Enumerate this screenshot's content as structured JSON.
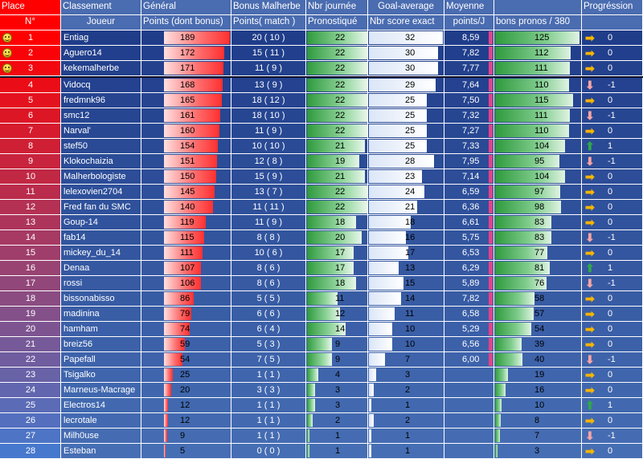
{
  "colors": {
    "header_bg": "#4a6cb0",
    "table_bg": "#1f3d8a",
    "sep": "#0a0f28",
    "accent_red": "#ff0000"
  },
  "header": {
    "row1": {
      "place": "Place",
      "classement": "Classement",
      "general": "Général",
      "bonus": "Bonus Malherbe",
      "nbr_journee": "Nbr journée",
      "goal_average": "Goal-average",
      "moyenne": "Moyenne",
      "progression": "Progréssion"
    },
    "row2": {
      "num": "N°",
      "joueur": "Joueur",
      "points": "Points (dont bonus)",
      "points_match": "Points( match )",
      "pronostique": "Pronostiqué",
      "score_exact": "Nbr score exact",
      "points_j": "points/J",
      "bons_pronos": "bons pronos / 380"
    }
  },
  "rows": [
    {
      "place": "1",
      "player": "Entiag",
      "points": 189,
      "bonus": "20 ( 10 )",
      "journee": 22,
      "exact": 32,
      "avg": "8,59",
      "pronos": 125,
      "prog": "0",
      "trend": "right",
      "smiley": true
    },
    {
      "place": "2",
      "player": "Aguero14",
      "points": 172,
      "bonus": "15 ( 11 )",
      "journee": 22,
      "exact": 30,
      "avg": "7,82",
      "pronos": 112,
      "prog": "0",
      "trend": "right",
      "smiley": true
    },
    {
      "place": "3",
      "player": "kekemalherbe",
      "points": 171,
      "bonus": "11 ( 9 )",
      "journee": 22,
      "exact": 30,
      "avg": "7,77",
      "pronos": 111,
      "prog": "0",
      "trend": "right",
      "smiley": true
    },
    {
      "place": "4",
      "player": "Vidocq",
      "points": 168,
      "bonus": "13 ( 9 )",
      "journee": 22,
      "exact": 29,
      "avg": "7,64",
      "pronos": 110,
      "prog": "-1",
      "trend": "down"
    },
    {
      "place": "5",
      "player": "fredmnk96",
      "points": 165,
      "bonus": "18 ( 12 )",
      "journee": 22,
      "exact": 25,
      "avg": "7,50",
      "pronos": 115,
      "prog": "0",
      "trend": "right"
    },
    {
      "place": "6",
      "player": "smc12",
      "points": 161,
      "bonus": "18 ( 10 )",
      "journee": 22,
      "exact": 25,
      "avg": "7,32",
      "pronos": 111,
      "prog": "-1",
      "trend": "down"
    },
    {
      "place": "7",
      "player": "Narval'",
      "points": 160,
      "bonus": "11 ( 9 )",
      "journee": 22,
      "exact": 25,
      "avg": "7,27",
      "pronos": 110,
      "prog": "0",
      "trend": "right"
    },
    {
      "place": "8",
      "player": "stef50",
      "points": 154,
      "bonus": "10 ( 10 )",
      "journee": 21,
      "exact": 25,
      "avg": "7,33",
      "pronos": 104,
      "prog": "1",
      "trend": "up"
    },
    {
      "place": "9",
      "player": "Klokochaizia",
      "points": 151,
      "bonus": "12 ( 8 )",
      "journee": 19,
      "exact": 28,
      "avg": "7,95",
      "pronos": 95,
      "prog": "-1",
      "trend": "down"
    },
    {
      "place": "10",
      "player": "Malherbologiste",
      "points": 150,
      "bonus": "15 ( 9 )",
      "journee": 21,
      "exact": 23,
      "avg": "7,14",
      "pronos": 104,
      "prog": "0",
      "trend": "right"
    },
    {
      "place": "11",
      "player": "lelexovien2704",
      "points": 145,
      "bonus": "13 ( 7 )",
      "journee": 22,
      "exact": 24,
      "avg": "6,59",
      "pronos": 97,
      "prog": "0",
      "trend": "right"
    },
    {
      "place": "12",
      "player": "Fred fan du SMC",
      "points": 140,
      "bonus": "11 ( 11 )",
      "journee": 22,
      "exact": 21,
      "avg": "6,36",
      "pronos": 98,
      "prog": "0",
      "trend": "right"
    },
    {
      "place": "13",
      "player": "Goup-14",
      "points": 119,
      "bonus": "11 ( 9 )",
      "journee": 18,
      "exact": 18,
      "avg": "6,61",
      "pronos": 83,
      "prog": "0",
      "trend": "right"
    },
    {
      "place": "14",
      "player": "fab14",
      "points": 115,
      "bonus": "8 ( 8 )",
      "journee": 20,
      "exact": 16,
      "avg": "5,75",
      "pronos": 83,
      "prog": "-1",
      "trend": "down"
    },
    {
      "place": "15",
      "player": "mickey_du_14",
      "points": 111,
      "bonus": "10 ( 6 )",
      "journee": 17,
      "exact": 17,
      "avg": "6,53",
      "pronos": 77,
      "prog": "0",
      "trend": "right"
    },
    {
      "place": "16",
      "player": "Denaa",
      "points": 107,
      "bonus": "8 ( 6 )",
      "journee": 17,
      "exact": 13,
      "avg": "6,29",
      "pronos": 81,
      "prog": "1",
      "trend": "up"
    },
    {
      "place": "17",
      "player": "rossi",
      "points": 106,
      "bonus": "8 ( 6 )",
      "journee": 18,
      "exact": 15,
      "avg": "5,89",
      "pronos": 76,
      "prog": "-1",
      "trend": "down"
    },
    {
      "place": "18",
      "player": "bissonabisso",
      "points": 86,
      "bonus": "5 ( 5 )",
      "journee": 11,
      "exact": 14,
      "avg": "7,82",
      "pronos": 58,
      "prog": "0",
      "trend": "right"
    },
    {
      "place": "19",
      "player": "madinina",
      "points": 79,
      "bonus": "6 ( 6 )",
      "journee": 12,
      "exact": 11,
      "avg": "6,58",
      "pronos": 57,
      "prog": "0",
      "trend": "right"
    },
    {
      "place": "20",
      "player": "hamham",
      "points": 74,
      "bonus": "6 ( 4 )",
      "journee": 14,
      "exact": 10,
      "avg": "5,29",
      "pronos": 54,
      "prog": "0",
      "trend": "right"
    },
    {
      "place": "21",
      "player": "breiz56",
      "points": 59,
      "bonus": "5 ( 3 )",
      "journee": 9,
      "exact": 10,
      "avg": "6,56",
      "pronos": 39,
      "prog": "0",
      "trend": "right"
    },
    {
      "place": "22",
      "player": "Papefall",
      "points": 54,
      "bonus": "7 ( 5 )",
      "journee": 9,
      "exact": 7,
      "avg": "6,00",
      "pronos": 40,
      "prog": "-1",
      "trend": "down"
    },
    {
      "place": "23",
      "player": "Tsigalko",
      "points": 25,
      "bonus": "1 ( 1 )",
      "journee": 4,
      "exact": 3,
      "avg": "",
      "pronos": 19,
      "prog": "0",
      "trend": "right"
    },
    {
      "place": "24",
      "player": "Marneus-Macrage",
      "points": 20,
      "bonus": "3 ( 3 )",
      "journee": 3,
      "exact": 2,
      "avg": "",
      "pronos": 16,
      "prog": "0",
      "trend": "right"
    },
    {
      "place": "25",
      "player": "Electros14",
      "points": 12,
      "bonus": "1 ( 1 )",
      "journee": 3,
      "exact": 1,
      "avg": "",
      "pronos": 10,
      "prog": "1",
      "trend": "up"
    },
    {
      "place": "26",
      "player": "lecrotale",
      "points": 12,
      "bonus": "1 ( 1 )",
      "journee": 2,
      "exact": 2,
      "avg": "",
      "pronos": 8,
      "prog": "0",
      "trend": "right"
    },
    {
      "place": "27",
      "player": "Milh0use",
      "points": 9,
      "bonus": "1 ( 1 )",
      "journee": 1,
      "exact": 1,
      "avg": "",
      "pronos": 7,
      "prog": "-1",
      "trend": "down"
    },
    {
      "place": "28",
      "player": "Esteban",
      "points": 5,
      "bonus": "0 ( 0 )",
      "journee": 1,
      "exact": 1,
      "avg": "",
      "pronos": 3,
      "prog": "0",
      "trend": "right"
    }
  ]
}
